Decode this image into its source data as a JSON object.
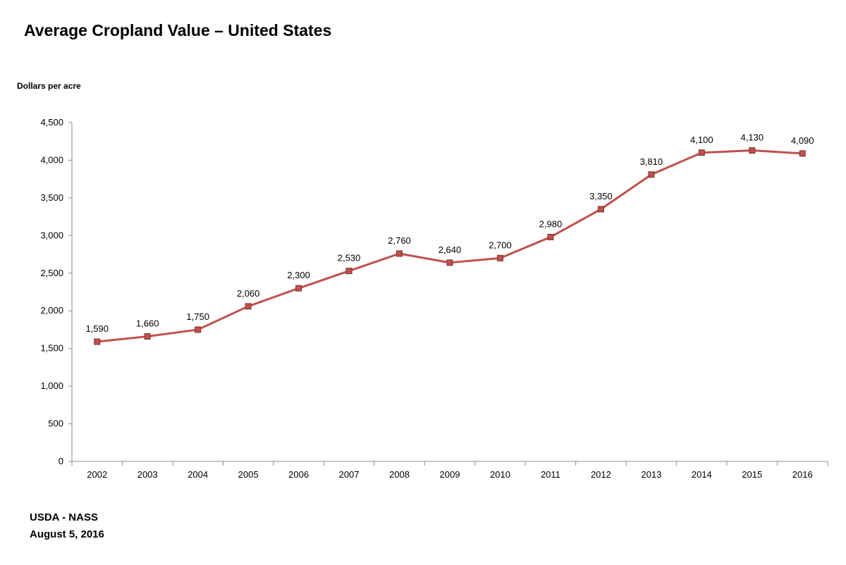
{
  "chart_data": {
    "type": "line",
    "title": "Average Cropland Value – United States",
    "ylabel": "Dollars per acre",
    "xlabel": "",
    "categories": [
      "2002",
      "2003",
      "2004",
      "2005",
      "2006",
      "2007",
      "2008",
      "2009",
      "2010",
      "2011",
      "2012",
      "2013",
      "2014",
      "2015",
      "2016"
    ],
    "series": [
      {
        "name": "Average Cropland Value",
        "values": [
          1590,
          1660,
          1750,
          2060,
          2300,
          2530,
          2760,
          2640,
          2700,
          2980,
          3350,
          3810,
          4100,
          4130,
          4090
        ],
        "labels": [
          "1,590",
          "1,660",
          "1,750",
          "2,060",
          "2,300",
          "2,530",
          "2,760",
          "2,640",
          "2,700",
          "2,980",
          "3,350",
          "3,810",
          "4,100",
          "4,130",
          "4,090"
        ]
      }
    ],
    "ylim": [
      0,
      4500
    ],
    "yticks": [
      0,
      500,
      1000,
      1500,
      2000,
      2500,
      3000,
      3500,
      4000,
      4500
    ],
    "ytick_labels": [
      "0",
      "500",
      "1,000",
      "1,500",
      "2,000",
      "2,500",
      "3,000",
      "3,500",
      "4,000",
      "4,500"
    ],
    "grid": false,
    "line_color": "#c0504d",
    "marker_color": "#c0504d"
  },
  "footer": {
    "source": "USDA - NASS",
    "date": "August 5, 2016"
  }
}
